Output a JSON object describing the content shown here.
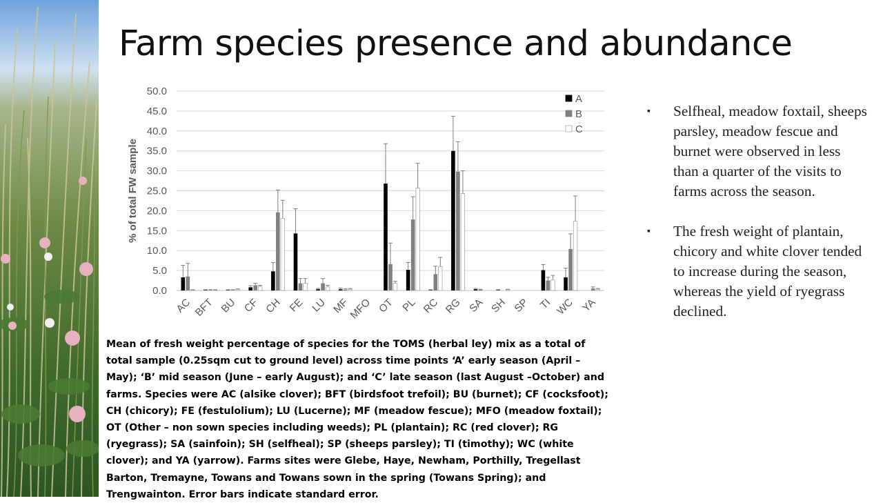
{
  "slide": {
    "title": "Farm species presence and abundance",
    "caption": "Mean of fresh weight percentage of species for the TOMS (herbal ley) mix as a total of total sample (0.25sqm cut to ground level) across time points ‘A’ early season (April – May); ‘B’ mid season (June – early August); and ‘C’ late season (last August –October) and farms. Species were AC (alsike clover); BFT (birdsfoot trefoil); BU (burnet); CF (cocksfoot); CH (chicory); FE (festulolium); LU (Lucerne); MF (meadow fescue); MFO (meadow foxtail); OT (Other – non sown species including weeds); PL (plantain); RC (red clover); RG (ryegrass); SA (sainfoin); SH (selfheal); SP (sheeps parsley); TI (timothy); WC (white clover); and YA (yarrow). Farms sites were Glebe, Haye, Newham, Porthilly, Tregellast Barton, Tremayne, Towans and Towans sown in the spring (Towans Spring); and Trengwainton. Error bars indicate standard error.",
    "bullets": [
      "Selfheal, meadow foxtail, sheeps parsley, meadow fescue and burnet were observed in less than a quarter of the visits to farms across the season.",
      "The fresh weight of plantain, chicory and white clover tended to increase during the season, whereas the yield of ryegrass declined."
    ]
  },
  "chart_data": {
    "type": "bar",
    "ylabel": "% of total FW sample",
    "xlabel": "",
    "ylim": [
      0,
      50
    ],
    "yticks": [
      "0.0",
      "5.0",
      "10.0",
      "15.0",
      "20.0",
      "25.0",
      "30.0",
      "35.0",
      "40.0",
      "45.0",
      "50.0"
    ],
    "grid": true,
    "legend_position": "top-right",
    "categories": [
      "AC",
      "BFT",
      "BU",
      "CF",
      "CH",
      "FE",
      "LU",
      "MF",
      "MFO",
      "OT",
      "PL",
      "RC",
      "RG",
      "SA",
      "SH",
      "SP",
      "TI",
      "WC",
      "YA"
    ],
    "series": [
      {
        "name": "A",
        "color": "#000000",
        "values": [
          3.3,
          0.1,
          0.1,
          0.8,
          4.8,
          14.3,
          0.3,
          0.3,
          0.0,
          26.8,
          5.2,
          0.1,
          35.0,
          0.3,
          0.1,
          0.0,
          5.1,
          3.3,
          0.0
        ],
        "errors": [
          3.0,
          0.1,
          0.1,
          0.4,
          2.2,
          6.2,
          0.2,
          0.3,
          0.0,
          10.0,
          1.8,
          0.1,
          8.7,
          0.2,
          0.1,
          0.0,
          1.4,
          2.3,
          0.0
        ]
      },
      {
        "name": "B",
        "color": "#808080",
        "values": [
          3.5,
          0.1,
          0.1,
          1.3,
          19.6,
          1.8,
          1.8,
          0.2,
          0.0,
          6.6,
          17.8,
          4.1,
          29.8,
          0.2,
          0.0,
          0.0,
          2.5,
          10.4,
          0.5
        ],
        "errors": [
          3.3,
          0.1,
          0.1,
          0.5,
          5.6,
          1.2,
          1.2,
          0.2,
          0.0,
          5.3,
          5.7,
          2.0,
          7.5,
          0.1,
          0.0,
          0.0,
          0.8,
          3.8,
          0.4
        ]
      },
      {
        "name": "C",
        "color": "#ffffff",
        "values": [
          0.1,
          0.1,
          0.3,
          1.0,
          18.1,
          1.8,
          0.9,
          0.3,
          0.0,
          1.8,
          25.7,
          6.0,
          24.3,
          0.0,
          0.2,
          0.0,
          2.7,
          17.4,
          0.3
        ],
        "errors": [
          0.1,
          0.1,
          0.1,
          0.3,
          4.5,
          1.2,
          0.4,
          0.2,
          0.0,
          0.5,
          6.2,
          2.3,
          5.7,
          0.0,
          0.1,
          0.0,
          1.1,
          6.3,
          0.2
        ]
      }
    ]
  }
}
